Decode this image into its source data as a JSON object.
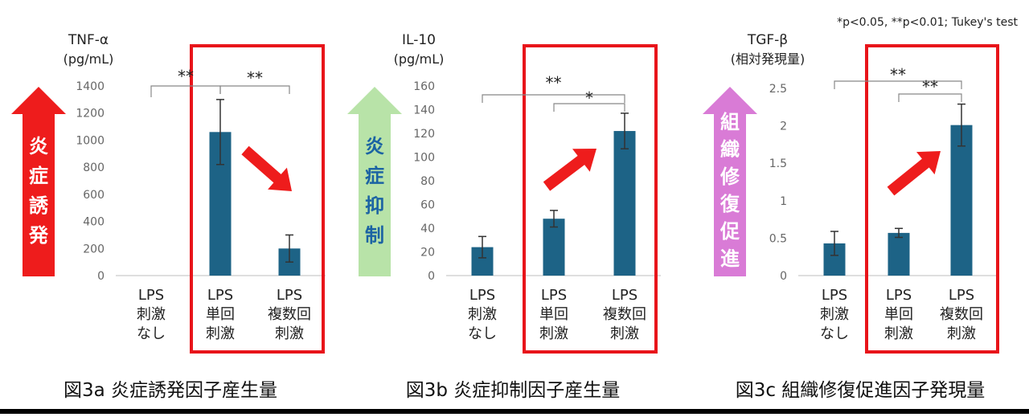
{
  "footnote": "*p<0.05, **p<0.01; Tukey's test",
  "colors": {
    "bar": "#1d6386",
    "highlight": "#e8141a",
    "red_arrow": "#ee1c1c",
    "green_arrow": "#b8e3a8",
    "pink_arrow": "#d97bd6",
    "bottom_rule": "#000000"
  },
  "chart_data": [
    {
      "type": "bar",
      "title": "TNF-α",
      "unit": "(pg/mL)",
      "caption": "図3a 炎症誘発因子産生量",
      "side_label": "炎症誘発",
      "categories": [
        [
          "LPS",
          "刺激",
          "なし"
        ],
        [
          "LPS",
          "単回",
          "刺激"
        ],
        [
          "LPS",
          "複数回",
          "刺激"
        ]
      ],
      "values": [
        0,
        1060,
        200
      ],
      "errors": [
        0,
        240,
        100
      ],
      "ylim": [
        0,
        1400
      ],
      "yticks": [
        "0",
        "200",
        "400",
        "600",
        "800",
        "1000",
        "1200",
        "1400"
      ],
      "significance": [
        {
          "from": 0,
          "to": 1,
          "label": "**"
        },
        {
          "from": 1,
          "to": 2,
          "label": "**"
        }
      ],
      "trend_arrow": "down",
      "highlight": [
        1,
        2
      ]
    },
    {
      "type": "bar",
      "title": "IL-10",
      "unit": "(pg/mL)",
      "caption": "図3b 炎症抑制因子産生量",
      "side_label": "炎症抑制",
      "categories": [
        [
          "LPS",
          "刺激",
          "なし"
        ],
        [
          "LPS",
          "単回",
          "刺激"
        ],
        [
          "LPS",
          "複数回",
          "刺激"
        ]
      ],
      "values": [
        24,
        48,
        122
      ],
      "errors": [
        9,
        7,
        15
      ],
      "ylim": [
        0,
        160
      ],
      "yticks": [
        "0",
        "20",
        "40",
        "60",
        "80",
        "100",
        "120",
        "140",
        "160"
      ],
      "significance": [
        {
          "from": 0,
          "to": 2,
          "label": "**"
        },
        {
          "from": 1,
          "to": 2,
          "label": "*"
        }
      ],
      "trend_arrow": "up",
      "highlight": [
        1,
        2
      ]
    },
    {
      "type": "bar",
      "title": "TGF-β",
      "unit": "(相対発現量)",
      "caption": "図3c 組織修復促進因子発現量",
      "side_label": "組織修復促進",
      "categories": [
        [
          "LPS",
          "刺激",
          "なし"
        ],
        [
          "LPS",
          "単回",
          "刺激"
        ],
        [
          "LPS",
          "複数回",
          "刺激"
        ]
      ],
      "values": [
        0.43,
        0.57,
        2.01
      ],
      "errors": [
        0.16,
        0.06,
        0.28
      ],
      "ylim": [
        0,
        2.5
      ],
      "yticks": [
        "0",
        "0.5",
        "1",
        "1.5",
        "2",
        "2.5"
      ],
      "significance": [
        {
          "from": 0,
          "to": 2,
          "label": "**"
        },
        {
          "from": 1,
          "to": 2,
          "label": "**"
        }
      ],
      "trend_arrow": "up",
      "highlight": [
        1,
        2
      ]
    }
  ]
}
